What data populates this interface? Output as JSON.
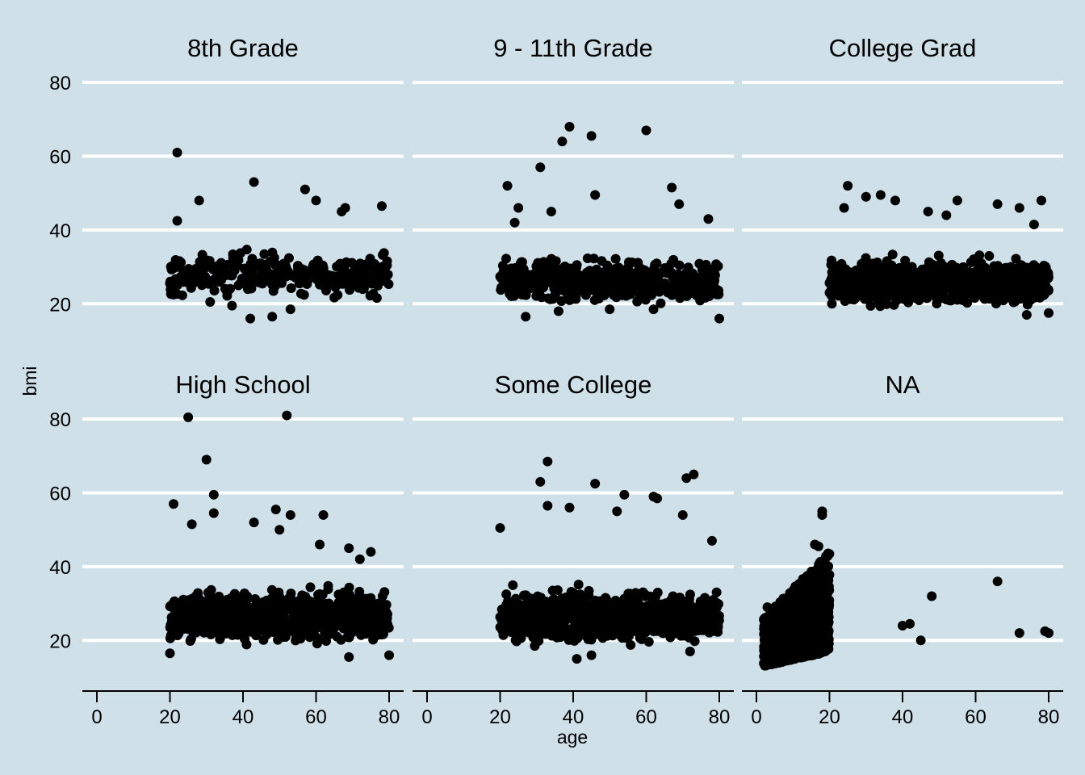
{
  "chart_data": {
    "type": "scatter",
    "theme_background": "#cfe0e8",
    "grid": "horizontal major lines only (white)",
    "point_color": "#000000",
    "xlabel": "age",
    "ylabel": "bmi",
    "xlim": [
      0,
      80
    ],
    "ylim": [
      10,
      82
    ],
    "x_ticks": [
      0,
      20,
      40,
      60,
      80
    ],
    "y_ticks": [
      20,
      40,
      60,
      80
    ],
    "panels": [
      {
        "name": "8th Grade",
        "points": [
          [
            22,
            61
          ],
          [
            22,
            42.5
          ],
          [
            28,
            48
          ],
          [
            43,
            53
          ],
          [
            57,
            51
          ],
          [
            60,
            48
          ],
          [
            67,
            45
          ],
          [
            68,
            46
          ],
          [
            78,
            46.5
          ],
          [
            42,
            16
          ],
          [
            48,
            16.5
          ],
          [
            53,
            18.5
          ],
          [
            37,
            19.5
          ],
          [
            31,
            20.5
          ],
          [
            20,
            25.5
          ],
          [
            21,
            22.5
          ]
        ],
        "bulk": {
          "x": [
            20,
            80
          ],
          "y": [
            20,
            40
          ],
          "density": 0.35
        }
      },
      {
        "name": "9 - 11th Grade",
        "points": [
          [
            39,
            68
          ],
          [
            45,
            65.5
          ],
          [
            37,
            64
          ],
          [
            60,
            67
          ],
          [
            31,
            57
          ],
          [
            22,
            52
          ],
          [
            46,
            49.5
          ],
          [
            67,
            51.5
          ],
          [
            27,
            16.5
          ],
          [
            80,
            16
          ],
          [
            36,
            18
          ],
          [
            50,
            18.5
          ],
          [
            62,
            18.5
          ],
          [
            25,
            46
          ],
          [
            34,
            45
          ],
          [
            69,
            47
          ],
          [
            24,
            42
          ],
          [
            77,
            43
          ]
        ],
        "bulk": {
          "x": [
            20,
            80
          ],
          "y": [
            18,
            38
          ],
          "density": 0.55
        }
      },
      {
        "name": "College Grad",
        "points": [
          [
            25,
            52
          ],
          [
            34,
            49.5
          ],
          [
            38,
            48
          ],
          [
            30,
            49
          ],
          [
            55,
            48
          ],
          [
            78,
            48
          ],
          [
            66,
            47
          ],
          [
            24,
            46
          ],
          [
            47,
            45
          ],
          [
            52,
            44
          ],
          [
            72,
            46
          ],
          [
            76,
            41.5
          ],
          [
            20,
            23
          ],
          [
            74,
            17
          ],
          [
            80,
            17.5
          ]
        ],
        "bulk": {
          "x": [
            20,
            80
          ],
          "y": [
            18,
            38
          ],
          "density": 1.0
        }
      },
      {
        "name": "High School",
        "points": [
          [
            25,
            80.5
          ],
          [
            52,
            81
          ],
          [
            30,
            69
          ],
          [
            32,
            59.5
          ],
          [
            21,
            57
          ],
          [
            49,
            55.5
          ],
          [
            53,
            54
          ],
          [
            62,
            54
          ],
          [
            32,
            54.5
          ],
          [
            43,
            52
          ],
          [
            26,
            51.5
          ],
          [
            50,
            50
          ],
          [
            61,
            46
          ],
          [
            69,
            45
          ],
          [
            75,
            44
          ],
          [
            72,
            42
          ],
          [
            69,
            15.5
          ],
          [
            20,
            16.5
          ],
          [
            80,
            16
          ]
        ],
        "bulk": {
          "x": [
            20,
            80
          ],
          "y": [
            17,
            40
          ],
          "density": 1.0
        }
      },
      {
        "name": "Some College",
        "points": [
          [
            33,
            68.5
          ],
          [
            71,
            64
          ],
          [
            73,
            65
          ],
          [
            31,
            63
          ],
          [
            46,
            62.5
          ],
          [
            54,
            59.5
          ],
          [
            62,
            59
          ],
          [
            63,
            58.5
          ],
          [
            39,
            56
          ],
          [
            33,
            56.5
          ],
          [
            70,
            54
          ],
          [
            52,
            55
          ],
          [
            20,
            50.5
          ],
          [
            41,
            15
          ],
          [
            45,
            16
          ],
          [
            72,
            17
          ],
          [
            78,
            47
          ]
        ],
        "bulk": {
          "x": [
            20,
            80
          ],
          "y": [
            17,
            40
          ],
          "density": 1.0
        }
      },
      {
        "name": "NA",
        "points": [
          [
            18,
            55
          ],
          [
            18,
            54
          ],
          [
            16,
            46
          ],
          [
            17,
            45.5
          ],
          [
            3,
            29
          ],
          [
            66,
            36
          ],
          [
            48,
            32
          ],
          [
            42,
            24.5
          ],
          [
            40,
            24
          ],
          [
            45,
            20
          ],
          [
            72,
            22
          ],
          [
            79,
            22.5
          ],
          [
            80,
            22
          ]
        ],
        "bulk_ramp": {
          "x": [
            2,
            20
          ],
          "y_low": 13,
          "y_high_start": 26,
          "y_high_end": 44
        }
      }
    ]
  }
}
